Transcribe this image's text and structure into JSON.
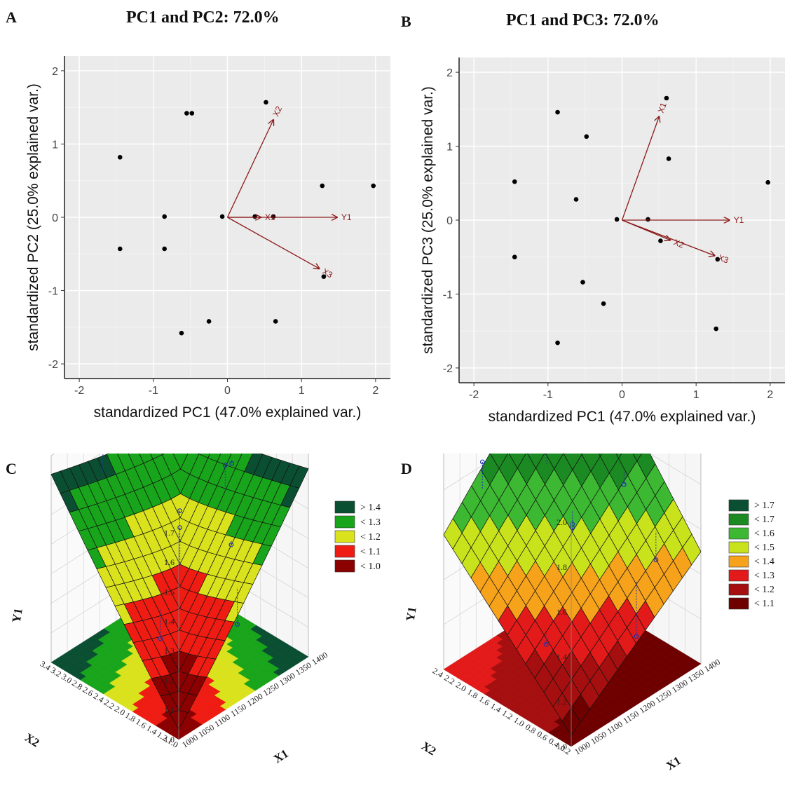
{
  "chart_data": [
    {
      "panel": "A",
      "type": "scatter",
      "title": "PC1 and PC2: 72.0%",
      "xlabel": "standardized PC1 (47.0% explained var.)",
      "ylabel": "standardized PC2 (25.0% explained var.)",
      "xlim": [
        -2.2,
        2.2
      ],
      "ylim": [
        -2.2,
        2.2
      ],
      "xticks": [
        -2,
        -1,
        0,
        1,
        2
      ],
      "yticks": [
        -2,
        -1,
        0,
        1,
        2
      ],
      "grid": true,
      "points": [
        {
          "x": -1.45,
          "y": 0.82
        },
        {
          "x": -1.45,
          "y": -0.43
        },
        {
          "x": -0.85,
          "y": 0.01
        },
        {
          "x": -0.85,
          "y": -0.43
        },
        {
          "x": -0.55,
          "y": 1.42
        },
        {
          "x": -0.48,
          "y": 1.42
        },
        {
          "x": -0.62,
          "y": -1.58
        },
        {
          "x": -0.25,
          "y": -1.42
        },
        {
          "x": -0.07,
          "y": 0.01
        },
        {
          "x": 0.37,
          "y": 0.01
        },
        {
          "x": 0.52,
          "y": 1.57
        },
        {
          "x": 0.62,
          "y": 0.01
        },
        {
          "x": 0.65,
          "y": -1.42
        },
        {
          "x": 1.28,
          "y": 0.43
        },
        {
          "x": 1.3,
          "y": -0.81
        },
        {
          "x": 1.97,
          "y": 0.43
        }
      ],
      "loadings": [
        {
          "name": "X2",
          "x": 0.62,
          "y": 1.33
        },
        {
          "name": "X1",
          "x": 0.45,
          "y": 0.0
        },
        {
          "name": "Y1",
          "x": 1.48,
          "y": 0.0
        },
        {
          "name": "X3",
          "x": 1.24,
          "y": -0.7
        }
      ]
    },
    {
      "panel": "B",
      "type": "scatter",
      "title": "PC1 and PC3: 72.0%",
      "xlabel": "standardized PC1 (47.0% explained var.)",
      "ylabel": "standardized PC3 (25.0% explained var.)",
      "xlim": [
        -2.2,
        2.2
      ],
      "ylim": [
        -2.2,
        2.2
      ],
      "xticks": [
        -2,
        -1,
        0,
        1,
        2
      ],
      "yticks": [
        -2,
        -1,
        0,
        1,
        2
      ],
      "grid": true,
      "points": [
        {
          "x": -1.45,
          "y": 0.52
        },
        {
          "x": -1.45,
          "y": -0.5
        },
        {
          "x": -0.87,
          "y": 1.46
        },
        {
          "x": -0.87,
          "y": -1.66
        },
        {
          "x": -0.62,
          "y": 0.28
        },
        {
          "x": -0.53,
          "y": -0.84
        },
        {
          "x": -0.48,
          "y": 1.13
        },
        {
          "x": -0.25,
          "y": -1.13
        },
        {
          "x": -0.07,
          "y": 0.01
        },
        {
          "x": 0.35,
          "y": 0.01
        },
        {
          "x": 0.52,
          "y": -0.28
        },
        {
          "x": 0.6,
          "y": 1.65
        },
        {
          "x": 0.63,
          "y": 0.83
        },
        {
          "x": 1.27,
          "y": -1.47
        },
        {
          "x": 1.29,
          "y": -0.53
        },
        {
          "x": 1.97,
          "y": 0.51
        }
      ],
      "loadings": [
        {
          "name": "X1",
          "x": 0.5,
          "y": 1.4
        },
        {
          "name": "Y1",
          "x": 1.45,
          "y": 0.0
        },
        {
          "name": "X2",
          "x": 0.65,
          "y": -0.27
        },
        {
          "name": "X3",
          "x": 1.25,
          "y": -0.48
        }
      ]
    },
    {
      "panel": "C",
      "type": "surface",
      "zlabel": "Y1",
      "xlabel": "X1",
      "ylabel": "X2",
      "zticks": [
        "1.0",
        "1.1",
        "1.2",
        "1.3",
        "1.4",
        "1.5",
        "1.6",
        "1.7"
      ],
      "x1ticks": [
        "1000",
        "1050",
        "1100",
        "1150",
        "1200",
        "1250",
        "1300",
        "1350",
        "1400"
      ],
      "x2ticks": [
        "1.0",
        "1.2",
        "1.4",
        "1.6",
        "1.8",
        "2.0",
        "2.2",
        "2.4",
        "2.6",
        "2.8",
        "3.0",
        "3.2",
        "3.4"
      ],
      "legend": [
        "> 1.4",
        "< 1.3",
        "< 1.2",
        "< 1.1",
        "< 1.0"
      ],
      "colors": [
        "#8b0000",
        "#ee1c12",
        "#d9e21c",
        "#19a51b",
        "#0b4f33"
      ]
    },
    {
      "panel": "D",
      "type": "surface",
      "zlabel": "Y1",
      "xlabel": "X1",
      "ylabel": "X2",
      "zticks": [
        "1.0",
        "1.2",
        "1.4",
        "1.6",
        "1.8",
        "2.0"
      ],
      "x1ticks": [
        "1000",
        "1050",
        "1100",
        "1150",
        "1200",
        "1250",
        "1300",
        "1350",
        "1400"
      ],
      "x2ticks": [
        "0.2",
        "0.4",
        "0.6",
        "0.8",
        "1.0",
        "1.2",
        "1.4",
        "1.6",
        "1.8",
        "2.0",
        "2.2",
        "2.4"
      ],
      "legend": [
        "> 1.7",
        "< 1.7",
        "< 1.6",
        "< 1.5",
        "< 1.4",
        "< 1.3",
        "< 1.2",
        "< 1.1"
      ],
      "colors": [
        "#6e0000",
        "#a50f0f",
        "#e31a1a",
        "#f7a21b",
        "#c8e31c",
        "#3cb832",
        "#1b8a22",
        "#0b4f33"
      ]
    }
  ]
}
